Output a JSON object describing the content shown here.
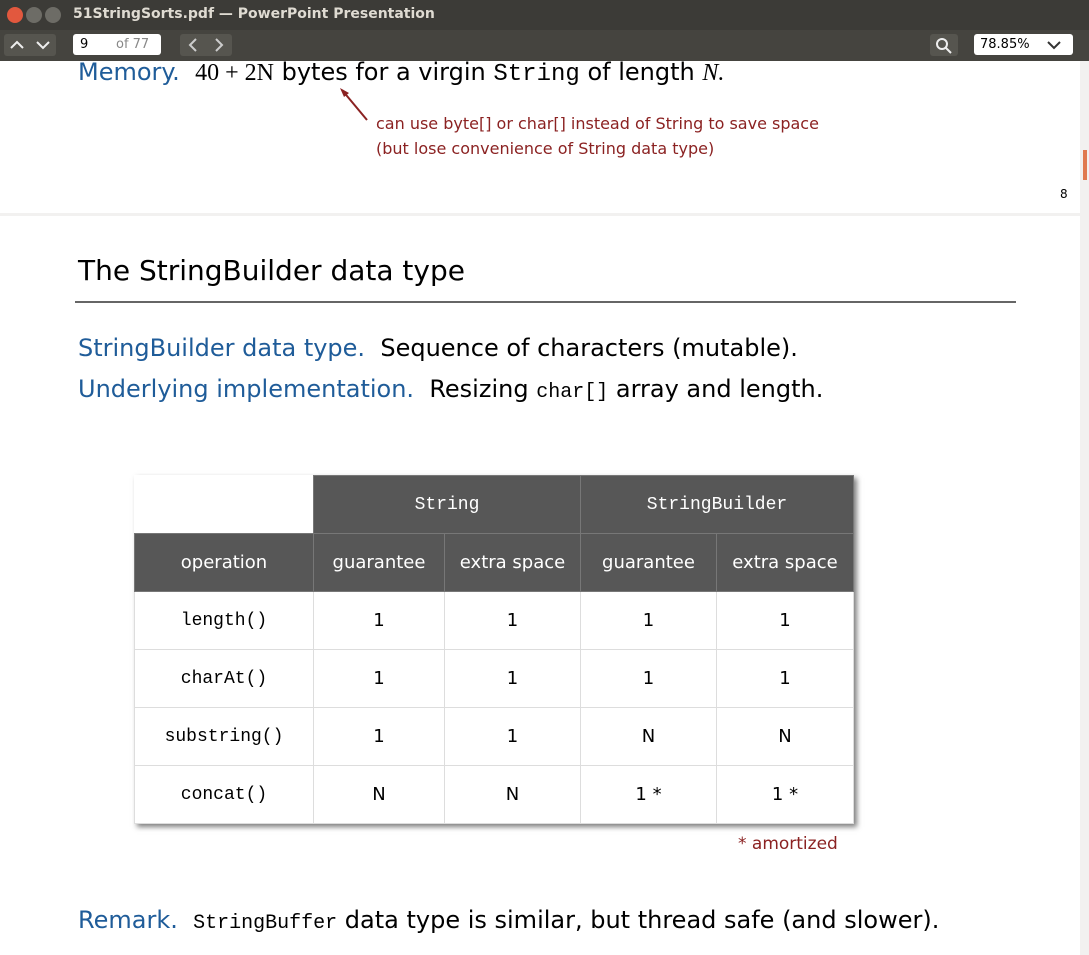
{
  "window": {
    "title": "51StringSorts.pdf — PowerPoint Presentation"
  },
  "toolbar": {
    "page": "9",
    "page_count": "of 77",
    "zoom": "78.85%"
  },
  "prev_slide": {
    "label": "Memory.",
    "formula": "40 + 2N",
    "text_1": "bytes for a virgin",
    "code": "String",
    "text_2": "of length",
    "var": "N.",
    "note_lines": [
      "can use byte[] or char[] instead of String to save space",
      "(but lose convenience of String data type)"
    ],
    "page_number": "8"
  },
  "slide": {
    "title": "The StringBuilder data type",
    "line_1": {
      "label": "StringBuilder data type.",
      "text": "Sequence of characters (mutable)."
    },
    "line_2": {
      "label": "Underlying implementation.",
      "text_1": "Resizing",
      "code": "char[]",
      "text_2": "array and length."
    },
    "table": {
      "groups": [
        "String",
        "StringBuilder"
      ],
      "headers": [
        "operation",
        "guarantee",
        "extra space",
        "guarantee",
        "extra space"
      ],
      "rows": [
        [
          "length()",
          "1",
          "1",
          "1",
          "1"
        ],
        [
          "charAt()",
          "1",
          "1",
          "1",
          "1"
        ],
        [
          "substring()",
          "1",
          "1",
          "N",
          "N"
        ],
        [
          "concat()",
          "N",
          "N",
          "1 *",
          "1 *"
        ]
      ]
    },
    "footnote": "*  amortized",
    "remark": {
      "label": "Remark.",
      "code": "StringBuffer",
      "text": "data type is similar, but thread safe (and slower)."
    }
  }
}
